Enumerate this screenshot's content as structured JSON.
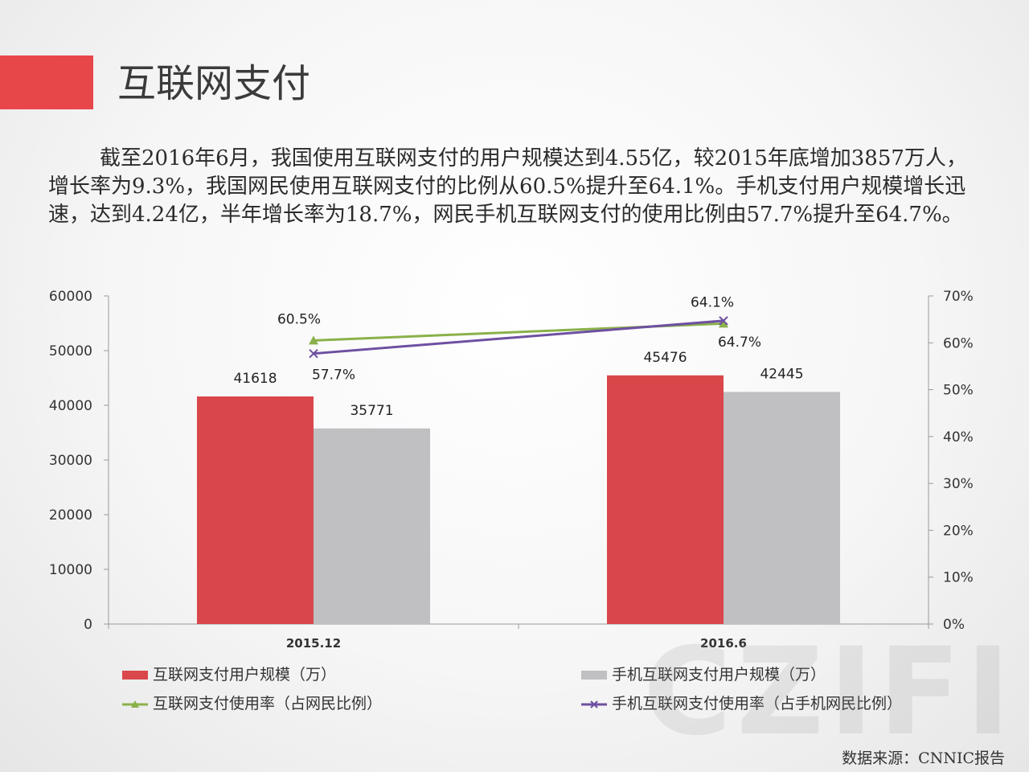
{
  "header": {
    "title": "互联网支付"
  },
  "summary": "截至2016年6月，我国使用互联网支付的用户规模达到4.55亿，较2015年底增加3857万人，增长率为9.3%，我国网民使用互联网支付的比例从60.5%提升至64.1%。手机支付用户规模增长迅速，达到4.24亿，半年增长率为18.7%，网民手机互联网支付的使用比例由57.7%提升至64.7%。",
  "chart_data": {
    "type": "bar",
    "categories": [
      "2015.12",
      "2016.6"
    ],
    "ylim": [
      0,
      60000
    ],
    "y2lim": [
      0,
      70
    ],
    "yticks": [
      "0",
      "10000",
      "20000",
      "30000",
      "40000",
      "50000",
      "60000"
    ],
    "y2ticks": [
      "0%",
      "10%",
      "20%",
      "30%",
      "40%",
      "50%",
      "60%",
      "70%"
    ],
    "series": [
      {
        "name": "互联网支付用户规模（万）",
        "kind": "bar",
        "axis": "left",
        "color": "#d9474b",
        "values": [
          41618,
          45476
        ],
        "labels": [
          "41618",
          "45476"
        ]
      },
      {
        "name": "手机互联网支付用户规模（万）",
        "kind": "bar",
        "axis": "left",
        "color": "#c0bfc2",
        "values": [
          35771,
          42445
        ],
        "labels": [
          "35771",
          "42445"
        ]
      },
      {
        "name": "互联网支付使用率（占网民比例）",
        "kind": "line",
        "marker": "triangle",
        "axis": "right",
        "color": "#8ab14a",
        "values": [
          60.5,
          64.1
        ],
        "labels": [
          "60.5%",
          "64.1%"
        ]
      },
      {
        "name": "手机互联网支付使用率（占手机网民比例）",
        "kind": "line",
        "marker": "x",
        "axis": "right",
        "color": "#6e50a1",
        "values": [
          57.7,
          64.7
        ],
        "labels": [
          "57.7%",
          "64.7%"
        ]
      }
    ],
    "legend_position": "bottom",
    "grid": false
  },
  "watermark": "CZIFI",
  "source": "数据来源：CNNIC报告"
}
